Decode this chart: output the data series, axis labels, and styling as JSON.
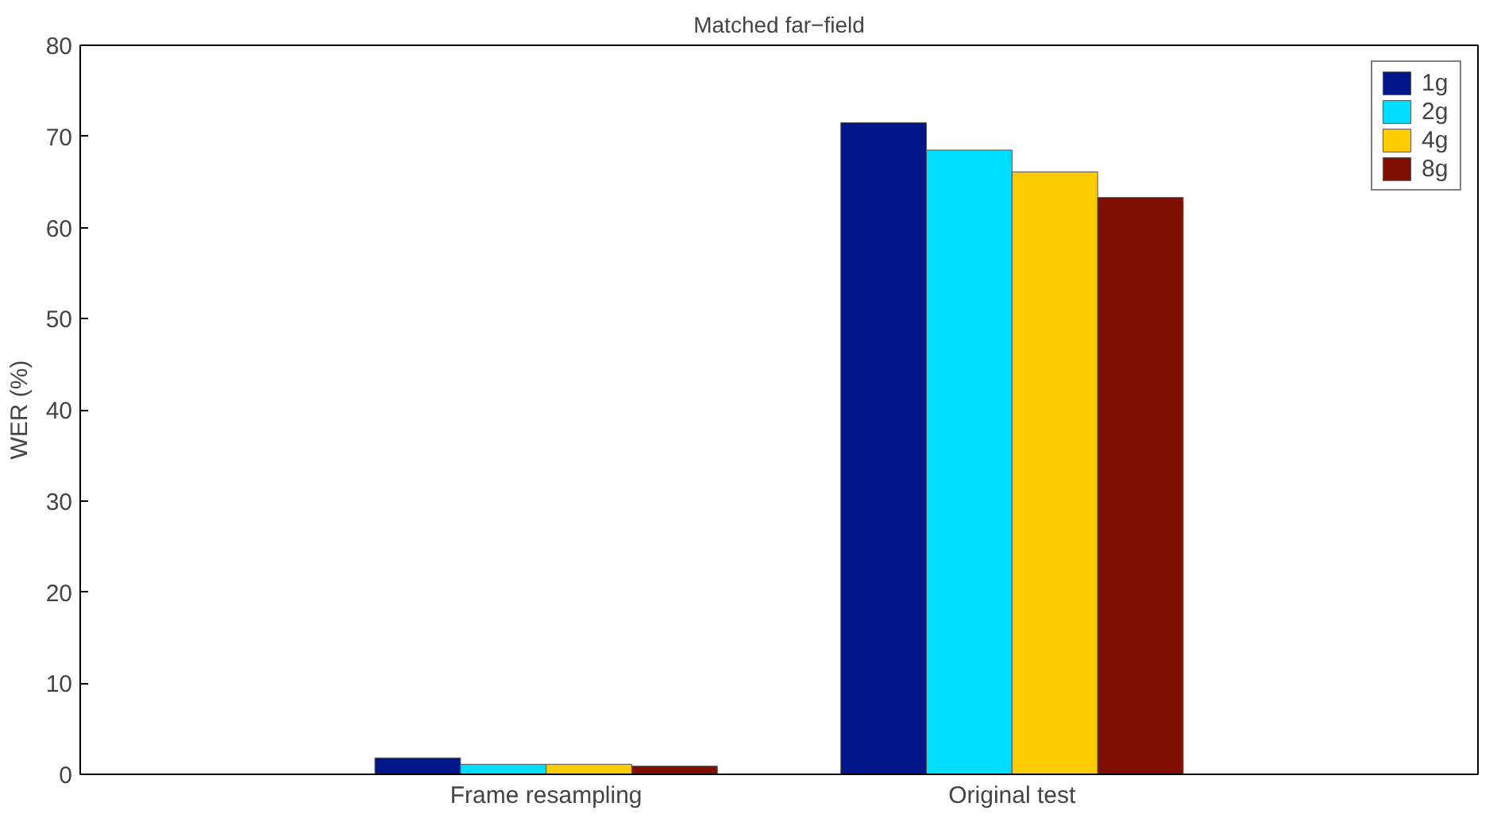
{
  "chart_data": {
    "type": "bar",
    "title": "Matched far−field",
    "ylabel": "WER (%)",
    "categories": [
      "Frame resampling",
      "Original test"
    ],
    "series": [
      {
        "name": "1g",
        "color": "#00168a",
        "values": [
          1.8,
          71.5
        ]
      },
      {
        "name": "2g",
        "color": "#00ddff",
        "values": [
          1.1,
          68.5
        ]
      },
      {
        "name": "4g",
        "color": "#fccb00",
        "values": [
          1.1,
          66.1
        ]
      },
      {
        "name": "8g",
        "color": "#7f0f00",
        "values": [
          0.9,
          63.3
        ]
      }
    ],
    "ylim": [
      0,
      80
    ],
    "yticks": [
      0,
      10,
      20,
      30,
      40,
      50,
      60,
      70,
      80
    ],
    "grid": false,
    "legend": "top right"
  }
}
